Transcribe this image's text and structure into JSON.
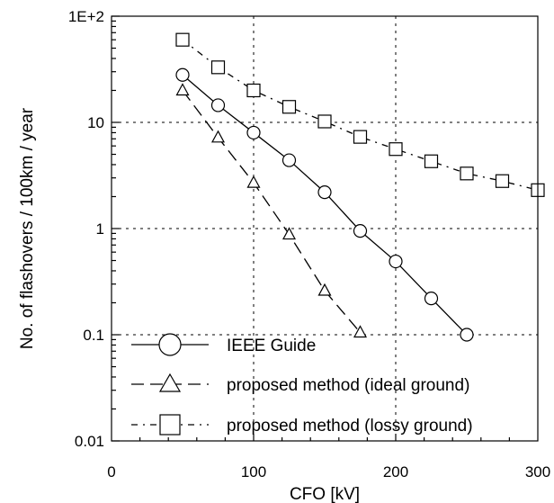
{
  "chart_data": {
    "type": "line",
    "xlabel": "CFO  [kV]",
    "ylabel": "No. of flashovers / 100km / year",
    "xlim": [
      0,
      300
    ],
    "ylim": [
      0.01,
      100
    ],
    "yscale": "log",
    "grid": true,
    "legend_position": "bottom-left",
    "x_ticks": [
      0,
      100,
      200,
      300
    ],
    "x_tick_labels": [
      "0",
      "100",
      "200",
      "300"
    ],
    "y_ticks": [
      0.01,
      0.1,
      1,
      10,
      100
    ],
    "y_tick_labels": [
      "0.01",
      "0.1",
      "1",
      "10",
      "1E+2"
    ],
    "series": [
      {
        "name": "IEEE Guide",
        "marker": "circle",
        "line": "solid",
        "x": [
          50,
          75,
          100,
          125,
          150,
          175,
          200,
          225,
          250
        ],
        "y": [
          28,
          14.5,
          8,
          4.4,
          2.2,
          0.95,
          0.49,
          0.22,
          0.1
        ]
      },
      {
        "name": "proposed method (ideal ground)",
        "marker": "triangle",
        "line": "dashed",
        "x": [
          50,
          75,
          100,
          125,
          150,
          175
        ],
        "y": [
          20,
          7.2,
          2.7,
          0.88,
          0.26,
          0.105
        ]
      },
      {
        "name": "proposed method (lossy ground)",
        "marker": "square",
        "line": "dashdot",
        "x": [
          50,
          75,
          100,
          125,
          150,
          175,
          200,
          225,
          250,
          275,
          300
        ],
        "y": [
          60,
          33,
          20,
          14,
          10.2,
          7.3,
          5.6,
          4.3,
          3.3,
          2.8,
          2.3
        ]
      }
    ]
  }
}
